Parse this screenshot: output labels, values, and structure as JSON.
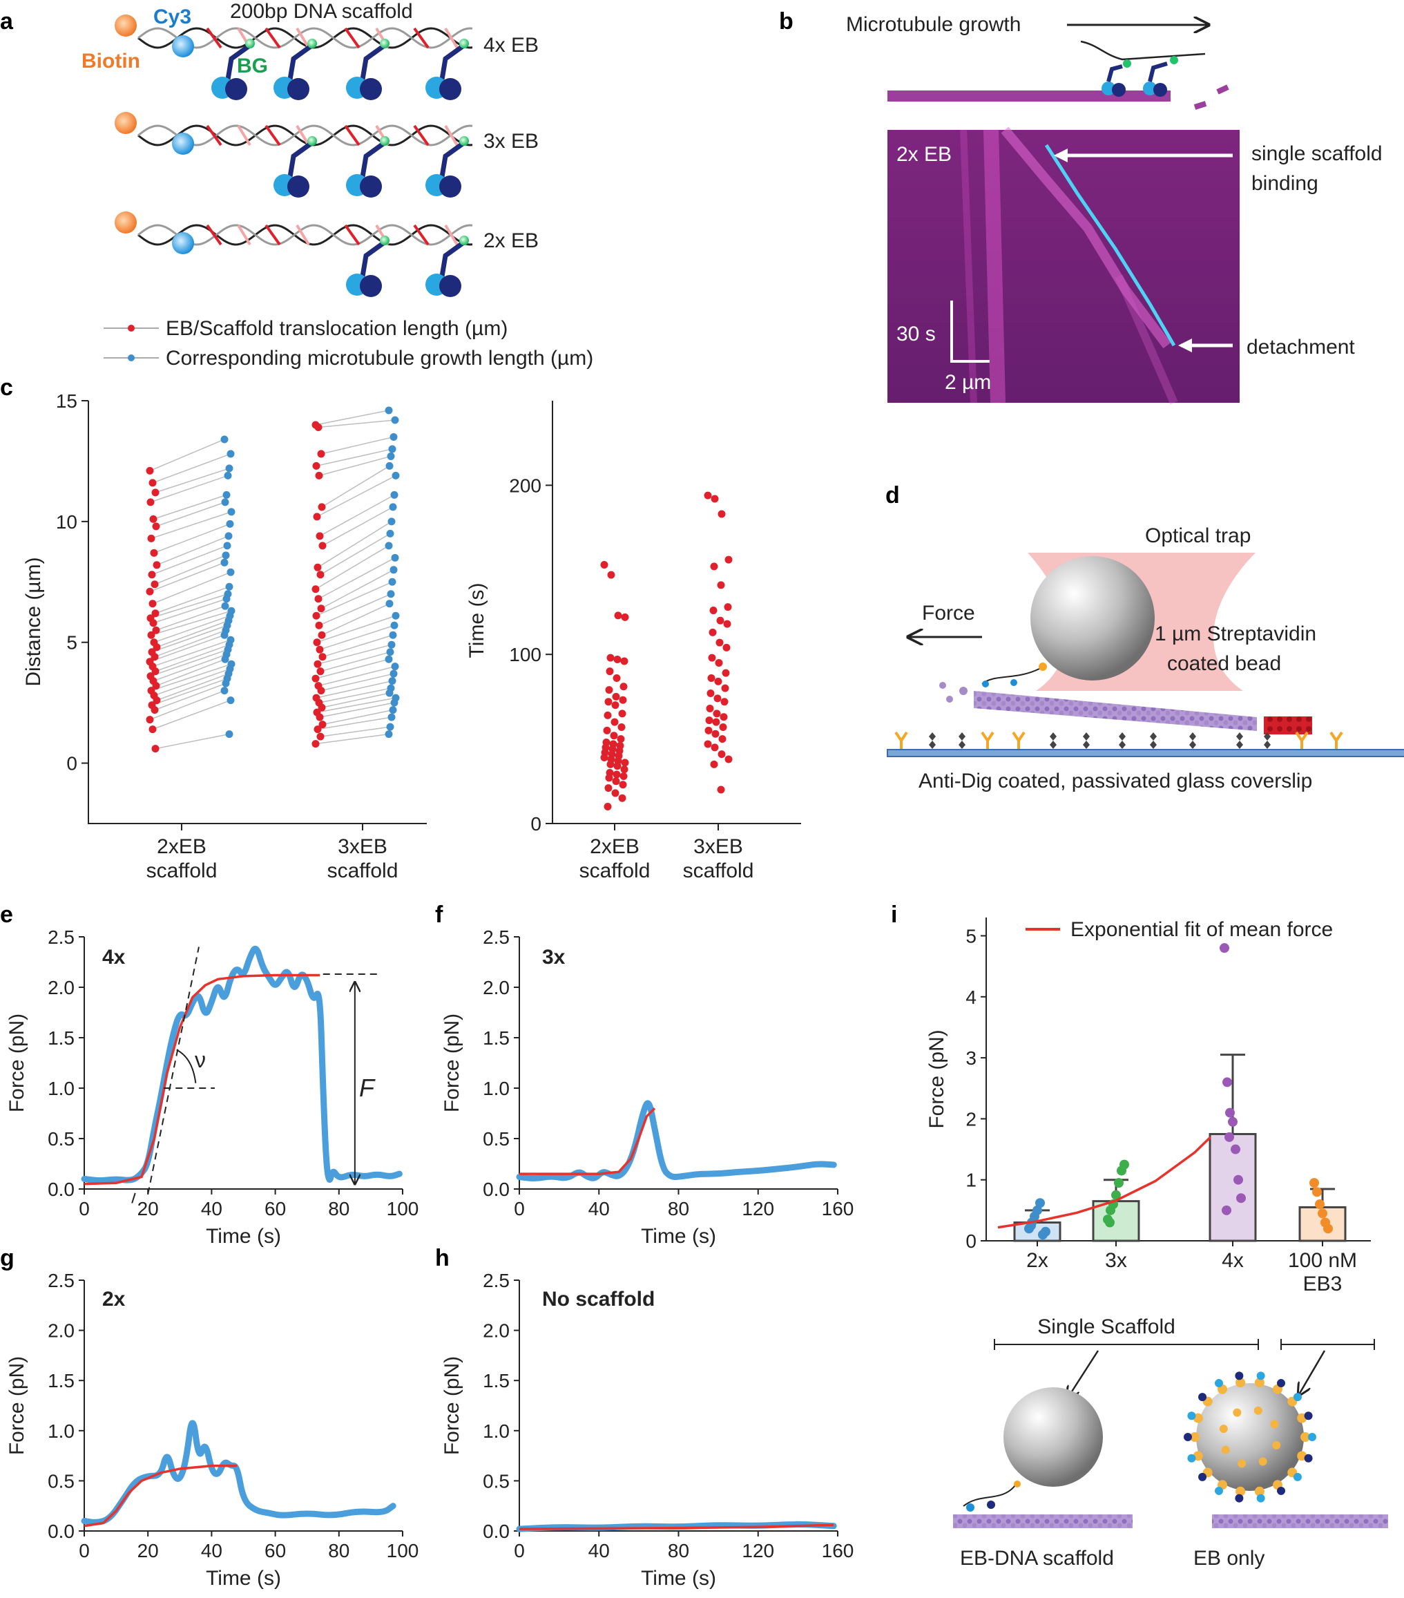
{
  "panels": {
    "a": {
      "letter": "a",
      "dna_title": "200bp DNA scaffold",
      "cy3": "Cy3",
      "biotin": "Biotin",
      "bg": "BG",
      "rows": [
        "4x EB",
        "3x EB",
        "2x EB"
      ],
      "legend": [
        "EB/Scaffold translocation length (µm)",
        "Corresponding microtubule growth length (µm)"
      ]
    },
    "b": {
      "letter": "b",
      "growth_label": "Microtubule growth",
      "kymo_label": "2x EB",
      "binding_label_1": "single scaffold",
      "binding_label_2": "binding",
      "detach_label": "detachment",
      "time_scale": "30 s",
      "dist_scale": "2 µm"
    },
    "c": {
      "letter": "c",
      "left_ylabel": "Distance (µm)",
      "right_ylabel": "Time (s)",
      "group_labels": [
        [
          "2xEB",
          "scaffold"
        ],
        [
          "3xEB",
          "scaffold"
        ]
      ]
    },
    "d": {
      "letter": "d",
      "trap": "Optical trap",
      "force": "Force",
      "bead_1": "1 µm Streptavidin",
      "bead_2": "coated bead",
      "coverslip": "Anti-Dig coated, passivated glass coverslip"
    },
    "e": {
      "letter": "e",
      "tag": "4x",
      "nu": "ν",
      "F": "F"
    },
    "f": {
      "letter": "f",
      "tag": "3x"
    },
    "g": {
      "letter": "g",
      "tag": "2x"
    },
    "h": {
      "letter": "h",
      "tag": "No scaffold"
    },
    "i": {
      "letter": "i",
      "legend": "Exponential fit of mean force",
      "bracket_label": "Single Scaffold",
      "bottom_left": "EB-DNA scaffold",
      "bottom_right": "EB only"
    }
  },
  "colors": {
    "red": "#e0202a",
    "blue": "#3d8ecb",
    "trace": "#4a9edb",
    "fit": "#e8322c",
    "magenta": "#b03fb0",
    "purple": "#9b59b6",
    "green": "#3cae4a",
    "orange": "#f28c28"
  },
  "chart_data": [
    {
      "id": "c-left",
      "type": "scatter",
      "title": "",
      "ylabel": "Distance (µm)",
      "ylim": [
        -2.5,
        15
      ],
      "yticks": [
        0,
        5,
        10,
        15
      ],
      "categories": [
        "2xEB scaffold",
        "3xEB scaffold"
      ],
      "series": [
        {
          "name": "EB/Scaffold translocation length (µm)",
          "group": "2xEB scaffold",
          "values": [
            12.1,
            11.6,
            11.2,
            10.8,
            10.1,
            9.8,
            9.3,
            8.7,
            8.2,
            7.8,
            7.4,
            7.1,
            6.6,
            6.2,
            6.0,
            5.8,
            5.5,
            5.3,
            5.0,
            4.8,
            4.6,
            4.4,
            4.2,
            4.0,
            3.8,
            3.6,
            3.4,
            3.2,
            3.0,
            2.8,
            2.6,
            2.4,
            2.2,
            1.8,
            1.4,
            0.6
          ]
        },
        {
          "name": "Corresponding microtubule growth length (µm)",
          "group": "2xEB scaffold",
          "values": [
            13.4,
            12.8,
            12.2,
            11.9,
            11.1,
            10.8,
            10.4,
            9.9,
            9.4,
            9.0,
            8.6,
            8.3,
            7.9,
            7.3,
            7.0,
            6.8,
            6.5,
            6.3,
            6.1,
            5.9,
            5.7,
            5.5,
            5.3,
            5.1,
            4.9,
            4.7,
            4.5,
            4.3,
            4.1,
            3.9,
            3.7,
            3.5,
            3.3,
            3.0,
            2.6,
            1.2
          ]
        },
        {
          "name": "EB/Scaffold translocation length (µm)",
          "group": "3xEB scaffold",
          "values": [
            14.0,
            13.9,
            12.8,
            12.3,
            11.9,
            10.6,
            10.2,
            9.4,
            9.0,
            8.1,
            7.8,
            7.2,
            6.8,
            6.4,
            6.1,
            5.7,
            5.3,
            5.0,
            4.7,
            4.4,
            4.1,
            3.8,
            3.5,
            3.2,
            3.0,
            2.7,
            2.5,
            2.3,
            2.1,
            1.9,
            1.6,
            1.4,
            1.1,
            0.8
          ]
        },
        {
          "name": "Corresponding microtubule growth length (µm)",
          "group": "3xEB scaffold",
          "values": [
            14.6,
            14.2,
            13.5,
            13.0,
            12.7,
            12.3,
            11.9,
            11.1,
            10.6,
            10.0,
            9.5,
            9.0,
            8.5,
            8.0,
            7.5,
            7.0,
            6.6,
            6.1,
            5.7,
            5.3,
            4.9,
            4.6,
            4.3,
            4.0,
            3.7,
            3.4,
            3.1,
            2.9,
            2.7,
            2.5,
            2.2,
            1.9,
            1.5,
            1.2
          ]
        }
      ]
    },
    {
      "id": "c-right",
      "type": "scatter",
      "ylabel": "Time (s)",
      "ylim": [
        0,
        250
      ],
      "yticks": [
        0,
        100,
        200
      ],
      "categories": [
        "2xEB scaffold",
        "3xEB scaffold"
      ],
      "series": [
        {
          "group": "2xEB scaffold",
          "values": [
            153,
            147,
            123,
            122,
            98,
            97,
            96,
            90,
            86,
            81,
            79,
            75,
            73,
            72,
            70,
            65,
            64,
            60,
            57,
            55,
            52,
            50,
            48,
            47,
            46,
            45,
            44,
            43,
            42,
            41,
            40,
            39,
            38,
            37,
            36,
            35,
            34,
            32,
            30,
            29,
            28,
            27,
            25,
            23,
            21,
            18,
            15,
            10
          ]
        },
        {
          "group": "3xEB scaffold",
          "values": [
            194,
            192,
            183,
            156,
            152,
            141,
            128,
            126,
            120,
            118,
            113,
            107,
            104,
            98,
            95,
            89,
            86,
            84,
            80,
            77,
            74,
            72,
            68,
            65,
            63,
            61,
            60,
            57,
            55,
            53,
            50,
            47,
            45,
            41,
            38,
            35,
            20
          ]
        }
      ]
    },
    {
      "id": "e",
      "type": "line",
      "xlabel": "Time (s)",
      "ylabel": "Force (pN)",
      "xlim": [
        0,
        100
      ],
      "ylim": [
        0,
        2.5
      ],
      "xticks": [
        0,
        20,
        40,
        60,
        80,
        100
      ],
      "yticks": [
        0,
        0.5,
        1.0,
        1.5,
        2.0,
        2.5
      ],
      "trace": [
        [
          0,
          0.1
        ],
        [
          5,
          0.08
        ],
        [
          10,
          0.1
        ],
        [
          15,
          0.08
        ],
        [
          18,
          0.15
        ],
        [
          20,
          0.25
        ],
        [
          22,
          0.6
        ],
        [
          24,
          0.9
        ],
        [
          26,
          1.25
        ],
        [
          28,
          1.55
        ],
        [
          30,
          1.75
        ],
        [
          32,
          1.7
        ],
        [
          34,
          1.85
        ],
        [
          36,
          1.95
        ],
        [
          38,
          1.7
        ],
        [
          40,
          1.85
        ],
        [
          42,
          2.05
        ],
        [
          44,
          1.85
        ],
        [
          46,
          2.1
        ],
        [
          48,
          2.2
        ],
        [
          50,
          2.1
        ],
        [
          52,
          2.3
        ],
        [
          54,
          2.42
        ],
        [
          56,
          2.2
        ],
        [
          58,
          2.1
        ],
        [
          60,
          2.0
        ],
        [
          62,
          2.1
        ],
        [
          64,
          2.18
        ],
        [
          66,
          1.95
        ],
        [
          68,
          2.15
        ],
        [
          70,
          2.08
        ],
        [
          72,
          1.85
        ],
        [
          74,
          2.0
        ],
        [
          75,
          1.0
        ],
        [
          76,
          0.25
        ],
        [
          77,
          0.05
        ],
        [
          78,
          0.2
        ],
        [
          80,
          0.1
        ],
        [
          84,
          0.15
        ],
        [
          88,
          0.12
        ],
        [
          92,
          0.15
        ],
        [
          96,
          0.12
        ],
        [
          99,
          0.15
        ]
      ],
      "fit": [
        [
          0,
          0.05
        ],
        [
          10,
          0.06
        ],
        [
          18,
          0.12
        ],
        [
          22,
          0.5
        ],
        [
          26,
          1.15
        ],
        [
          30,
          1.6
        ],
        [
          34,
          1.9
        ],
        [
          38,
          2.02
        ],
        [
          42,
          2.08
        ],
        [
          50,
          2.11
        ],
        [
          60,
          2.12
        ],
        [
          74,
          2.12
        ]
      ]
    },
    {
      "id": "f",
      "type": "line",
      "xlabel": "Time (s)",
      "ylabel": "Force (pN)",
      "xlim": [
        0,
        160
      ],
      "ylim": [
        0,
        2.5
      ],
      "xticks": [
        0,
        40,
        80,
        120,
        160
      ],
      "yticks": [
        0,
        0.5,
        1.0,
        1.5,
        2.0,
        2.5
      ],
      "trace": [
        [
          0,
          0.12
        ],
        [
          8,
          0.1
        ],
        [
          16,
          0.13
        ],
        [
          24,
          0.1
        ],
        [
          30,
          0.18
        ],
        [
          34,
          0.12
        ],
        [
          38,
          0.1
        ],
        [
          42,
          0.18
        ],
        [
          46,
          0.14
        ],
        [
          50,
          0.12
        ],
        [
          54,
          0.2
        ],
        [
          58,
          0.4
        ],
        [
          62,
          0.75
        ],
        [
          65,
          0.9
        ],
        [
          68,
          0.6
        ],
        [
          72,
          0.2
        ],
        [
          76,
          0.12
        ],
        [
          80,
          0.12
        ],
        [
          90,
          0.15
        ],
        [
          100,
          0.15
        ],
        [
          110,
          0.17
        ],
        [
          120,
          0.18
        ],
        [
          130,
          0.2
        ],
        [
          140,
          0.22
        ],
        [
          150,
          0.25
        ],
        [
          158,
          0.24
        ]
      ],
      "fit": [
        [
          0,
          0.15
        ],
        [
          20,
          0.15
        ],
        [
          40,
          0.15
        ],
        [
          50,
          0.17
        ],
        [
          56,
          0.3
        ],
        [
          60,
          0.5
        ],
        [
          64,
          0.72
        ],
        [
          68,
          0.8
        ]
      ]
    },
    {
      "id": "g",
      "type": "line",
      "xlabel": "Time (s)",
      "ylabel": "Force (pN)",
      "xlim": [
        0,
        100
      ],
      "ylim": [
        0,
        2.5
      ],
      "xticks": [
        0,
        20,
        40,
        60,
        80,
        100
      ],
      "yticks": [
        0,
        0.5,
        1.0,
        1.5,
        2.0,
        2.5
      ],
      "trace": [
        [
          0,
          0.1
        ],
        [
          4,
          0.08
        ],
        [
          8,
          0.12
        ],
        [
          12,
          0.3
        ],
        [
          16,
          0.5
        ],
        [
          20,
          0.55
        ],
        [
          24,
          0.55
        ],
        [
          26,
          0.8
        ],
        [
          28,
          0.55
        ],
        [
          30,
          0.5
        ],
        [
          32,
          0.7
        ],
        [
          34,
          1.2
        ],
        [
          36,
          0.7
        ],
        [
          38,
          0.9
        ],
        [
          40,
          0.6
        ],
        [
          42,
          0.55
        ],
        [
          44,
          0.7
        ],
        [
          46,
          0.65
        ],
        [
          48,
          0.65
        ],
        [
          50,
          0.3
        ],
        [
          54,
          0.2
        ],
        [
          58,
          0.18
        ],
        [
          62,
          0.15
        ],
        [
          70,
          0.18
        ],
        [
          78,
          0.15
        ],
        [
          86,
          0.2
        ],
        [
          94,
          0.18
        ],
        [
          97,
          0.25
        ]
      ],
      "fit": [
        [
          0,
          0.05
        ],
        [
          6,
          0.08
        ],
        [
          10,
          0.2
        ],
        [
          14,
          0.38
        ],
        [
          18,
          0.5
        ],
        [
          24,
          0.58
        ],
        [
          30,
          0.62
        ],
        [
          40,
          0.65
        ],
        [
          48,
          0.65
        ]
      ]
    },
    {
      "id": "h",
      "type": "line",
      "xlabel": "Time (s)",
      "ylabel": "Force (pN)",
      "xlim": [
        0,
        160
      ],
      "ylim": [
        0,
        2.5
      ],
      "xticks": [
        0,
        40,
        80,
        120,
        160
      ],
      "yticks": [
        0,
        0.5,
        1.0,
        1.5,
        2.0,
        2.5
      ],
      "trace": [
        [
          0,
          0.02
        ],
        [
          20,
          0.04
        ],
        [
          40,
          0.03
        ],
        [
          60,
          0.05
        ],
        [
          80,
          0.04
        ],
        [
          100,
          0.06
        ],
        [
          120,
          0.05
        ],
        [
          140,
          0.07
        ],
        [
          158,
          0.05
        ]
      ],
      "fit": [
        [
          0,
          0.02
        ],
        [
          40,
          0.025
        ],
        [
          80,
          0.03
        ],
        [
          120,
          0.04
        ],
        [
          158,
          0.06
        ]
      ]
    },
    {
      "id": "i",
      "type": "bar",
      "ylabel": "Force (pN)",
      "categories": [
        "2x",
        "3x",
        "4x",
        "100 nM EB3"
      ],
      "values": [
        0.3,
        0.65,
        1.75,
        0.55
      ],
      "errors": [
        0.2,
        0.35,
        1.3,
        0.3
      ],
      "points": [
        [
          0.2,
          0.3,
          0.4,
          0.5,
          0.62,
          0.1,
          0.15,
          0.25
        ],
        [
          0.35,
          0.5,
          0.6,
          0.75,
          0.95,
          1.15,
          1.25,
          0.3
        ],
        [
          4.8,
          2.6,
          2.1,
          1.95,
          1.5,
          1.0,
          0.7,
          0.5,
          1.7
        ],
        [
          0.95,
          0.8,
          0.6,
          0.45,
          0.3,
          0.2
        ]
      ],
      "fill_colors": [
        "#cfe3f4",
        "#cdebd0",
        "#e3d3ea",
        "#fde0c8"
      ],
      "point_colors": [
        "#3d8ecb",
        "#3cae4a",
        "#9b59b6",
        "#f28c28"
      ],
      "ylim": [
        0,
        5.3
      ],
      "yticks": [
        0,
        1,
        2,
        3,
        4,
        5
      ],
      "fit": [
        [
          0.5,
          0.22
        ],
        [
          1,
          0.32
        ],
        [
          1.5,
          0.46
        ],
        [
          2,
          0.66
        ],
        [
          2.5,
          0.98
        ],
        [
          3,
          1.45
        ],
        [
          3.2,
          1.7
        ]
      ],
      "legend": "Exponential fit of mean force"
    }
  ]
}
